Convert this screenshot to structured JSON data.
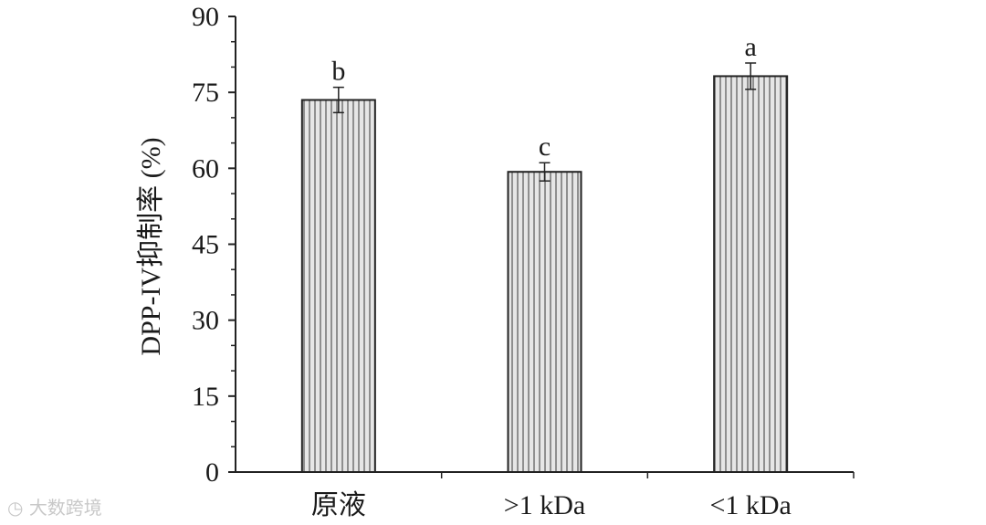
{
  "chart_data": {
    "type": "bar",
    "categories": [
      "原液",
      ">1 kDa",
      "<1 kDa"
    ],
    "values": [
      73.5,
      59.3,
      78.2
    ],
    "errors": [
      2.5,
      1.8,
      2.6
    ],
    "significance": [
      "b",
      "c",
      "a"
    ],
    "ylabel": "DPP-IV抑制率 (%)",
    "xlabel": "",
    "ylim": [
      0,
      90
    ],
    "yticks": [
      0,
      15,
      30,
      45,
      60,
      75,
      90
    ],
    "grid": false,
    "bar_fill": "#d8d8d8",
    "bar_stroke": "#222222",
    "bar_pattern": "vertical-lines"
  },
  "watermark": "大数跨境"
}
